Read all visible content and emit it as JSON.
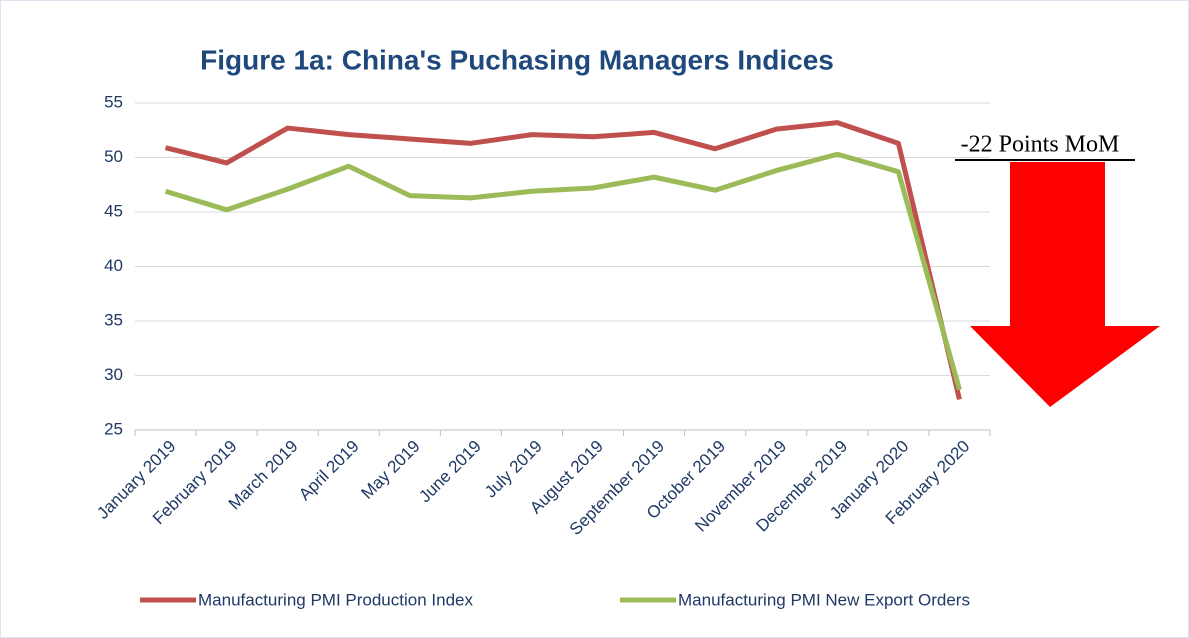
{
  "chart_data": {
    "type": "line",
    "title": "Figure 1a: China's Puchasing Managers Indices",
    "annotation": "-22 Points MoM",
    "categories": [
      "January 2019",
      "February 2019",
      "March 2019",
      "April 2019",
      "May 2019",
      "June 2019",
      "July 2019",
      "August 2019",
      "September 2019",
      "October 2019",
      "November 2019",
      "December 2019",
      "January 2020",
      "February 2020"
    ],
    "series": [
      {
        "name": "Manufacturing PMI Production Index",
        "color": "#c0504d",
        "values": [
          50.9,
          49.5,
          52.7,
          52.1,
          51.7,
          51.3,
          52.1,
          51.9,
          52.3,
          50.8,
          52.6,
          53.2,
          51.3,
          27.8
        ]
      },
      {
        "name": "Manufacturing PMI New Export Orders",
        "color": "#9bbb59",
        "values": [
          46.9,
          45.2,
          47.1,
          49.2,
          46.5,
          46.3,
          46.9,
          47.2,
          48.2,
          47.0,
          48.8,
          50.3,
          48.7,
          28.7
        ]
      }
    ],
    "ylim": [
      25,
      55
    ],
    "yticks": [
      25,
      30,
      35,
      40,
      45,
      50,
      55
    ],
    "grid": true,
    "legend": "bottom"
  }
}
